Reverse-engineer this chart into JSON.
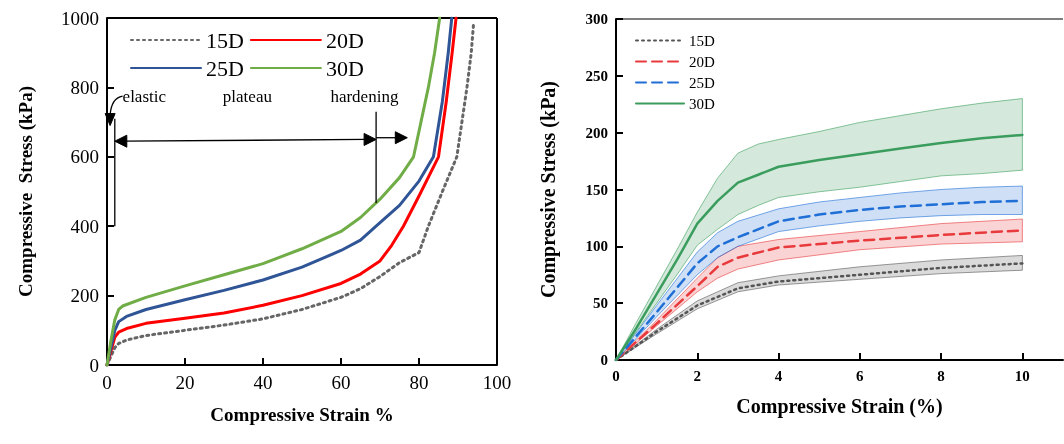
{
  "chart_data": [
    {
      "type": "line",
      "xlabel": "Compressive Strain %",
      "ylabel": "Compressive  Stress (kPa)",
      "xlim": [
        0,
        100
      ],
      "ylim": [
        0,
        1000
      ],
      "xticks": [
        0,
        20,
        40,
        60,
        80,
        100
      ],
      "yticks": [
        0,
        200,
        400,
        600,
        800,
        1000
      ],
      "grid": false,
      "legend": "top",
      "annotations": [
        "elastic",
        "plateau",
        {
          "text": "hardening",
          "x": 69,
          "y": 467
        }
      ],
      "series": [
        {
          "name": "15D",
          "color": "#666666",
          "line_style": "dotted",
          "x": [
            0,
            2,
            3,
            5,
            10,
            20,
            30,
            40,
            50,
            60,
            65,
            70,
            75,
            80,
            82.4,
            86,
            89.7,
            91,
            92.3,
            93.4,
            94
          ],
          "values": [
            0,
            50,
            62,
            72,
            85,
            100,
            115,
            133,
            160,
            195,
            220,
            255,
            295,
            324,
            400,
            500,
            600,
            700,
            800,
            900,
            985
          ]
        },
        {
          "name": "20D",
          "color": "#ff0000",
          "line_style": "solid",
          "x": [
            0,
            2,
            3,
            5,
            10,
            20,
            30,
            40,
            50,
            60,
            65,
            70,
            73,
            76,
            80,
            85,
            87,
            88.5,
            89.5
          ],
          "values": [
            0,
            80,
            95,
            105,
            120,
            135,
            150,
            172,
            200,
            235,
            262,
            300,
            345,
            400,
            487,
            600,
            760,
            900,
            1000
          ]
        },
        {
          "name": "25D",
          "color": "#2f5597",
          "line_style": "solid",
          "x": [
            0,
            2,
            3,
            5,
            10,
            20,
            30,
            40,
            50,
            60,
            65,
            69,
            75,
            80,
            83.7,
            86,
            87.5,
            88.4
          ],
          "values": [
            0,
            100,
            125,
            140,
            160,
            188,
            215,
            245,
            282,
            330,
            360,
            400,
            460,
            530,
            600,
            760,
            900,
            1000
          ]
        },
        {
          "name": "30D",
          "color": "#70ad47",
          "line_style": "solid",
          "x": [
            0,
            1,
            2,
            3,
            4,
            10,
            20,
            30,
            40,
            50,
            60,
            65,
            70,
            75,
            78.6,
            80.5,
            82.4,
            84,
            85.3
          ],
          "values": [
            0,
            70,
            130,
            160,
            170,
            195,
            228,
            260,
            292,
            335,
            385,
            425,
            478,
            540,
            600,
            700,
            800,
            900,
            1000
          ]
        }
      ]
    },
    {
      "type": "line",
      "xlabel": "Compressive Strain (%)",
      "ylabel": "Compressive Stress (kPa)",
      "xlim": [
        0,
        11
      ],
      "ylim": [
        0,
        300
      ],
      "xticks": [
        0,
        2,
        4,
        6,
        8,
        10
      ],
      "yticks": [
        0,
        50,
        100,
        150,
        200,
        250,
        300
      ],
      "grid": false,
      "legend": "top left",
      "series": [
        {
          "name": "15D",
          "color": "#555555",
          "line_style": "dotted",
          "x": [
            0,
            1,
            2,
            3,
            4,
            6,
            8,
            10
          ],
          "values": [
            0,
            25,
            48,
            63,
            69,
            75,
            81,
            85
          ],
          "lower": [
            0,
            23,
            45,
            60,
            66,
            71,
            76,
            79
          ],
          "upper": [
            0,
            27,
            52,
            68,
            74,
            82,
            88,
            92
          ]
        },
        {
          "name": "20D",
          "color": "#e8393c",
          "line_style": "dashed",
          "x": [
            0,
            1,
            2,
            2.5,
            3,
            4,
            6,
            8,
            10
          ],
          "values": [
            0,
            32,
            65,
            82,
            90,
            99,
            105,
            110,
            114
          ],
          "lower": [
            0,
            30,
            60,
            72,
            80,
            88,
            97,
            102,
            104
          ],
          "upper": [
            0,
            35,
            72,
            90,
            100,
            106,
            113,
            120,
            124
          ]
        },
        {
          "name": "25D",
          "color": "#1f6fd6",
          "line_style": "dashed",
          "x": [
            0,
            1,
            2,
            2.5,
            3,
            4,
            5,
            6,
            7,
            8,
            9,
            10
          ],
          "values": [
            0,
            42,
            85,
            100,
            108,
            122,
            128,
            132,
            135,
            137,
            139,
            140
          ],
          "lower": [
            0,
            38,
            75,
            90,
            100,
            113,
            118,
            122,
            125,
            127,
            128,
            128
          ],
          "upper": [
            0,
            48,
            95,
            112,
            122,
            133,
            139,
            143,
            147,
            150,
            152,
            153
          ]
        },
        {
          "name": "30D",
          "color": "#3a9d5d",
          "line_style": "solid",
          "x": [
            0,
            0.5,
            1,
            1.5,
            2,
            2.5,
            3,
            3.5,
            4,
            5,
            6,
            7,
            8,
            9,
            10
          ],
          "values": [
            0,
            28,
            58,
            88,
            120,
            140,
            156,
            163,
            170,
            176,
            181,
            186,
            191,
            195,
            198
          ],
          "lower": [
            0,
            25,
            50,
            75,
            101,
            115,
            128,
            136,
            143,
            148,
            152,
            157,
            162,
            164,
            167
          ],
          "upper": [
            0,
            33,
            65,
            97,
            130,
            160,
            182,
            190,
            194,
            201,
            209,
            215,
            221,
            226,
            230
          ]
        }
      ]
    }
  ]
}
